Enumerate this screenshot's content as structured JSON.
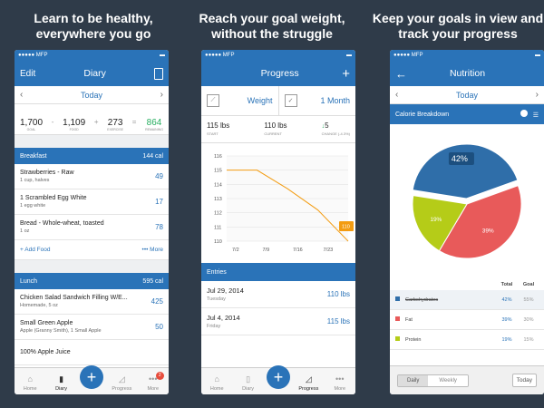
{
  "captions": [
    "Learn to be healthy,\neverywhere you go",
    "Reach your goal weight,\nwithout the struggle",
    "Keep your goals in view and\ntrack your progress"
  ],
  "status": {
    "carrier": "●●●●● MFP",
    "battery": "▬"
  },
  "diary": {
    "nav_left": "Edit",
    "title": "Diary",
    "date": "Today",
    "summary": [
      {
        "num": "1,700",
        "lbl": "GOAL"
      },
      {
        "num": "1,109",
        "lbl": "FOOD"
      },
      {
        "num": "273",
        "lbl": "EXERCISE"
      },
      {
        "num": "864",
        "lbl": "REMAINING"
      }
    ],
    "ops": [
      "-",
      "+",
      "="
    ],
    "breakfast": {
      "title": "Breakfast",
      "cal": "144 cal"
    },
    "breakfast_items": [
      {
        "name": "Strawberries - Raw",
        "serving": "1 cup, halves",
        "cal": "49"
      },
      {
        "name": "1 Scrambled Egg White",
        "serving": "1 egg white",
        "cal": "17"
      },
      {
        "name": "Bread - Whole-wheat, toasted",
        "serving": "1 oz",
        "cal": "78"
      }
    ],
    "add_food": "+ Add Food",
    "more": "••• More",
    "lunch": {
      "title": "Lunch",
      "cal": "595 cal"
    },
    "lunch_items": [
      {
        "name": "Chicken Salad Sandwich Filling W/E...",
        "serving": "Homemade, 5 oz",
        "cal": "425"
      },
      {
        "name": "Small Green Apple",
        "serving": "Apple (Granny Smith), 1 Small Apple",
        "cal": "50"
      },
      {
        "name": "100% Apple Juice",
        "serving": "",
        "cal": ""
      }
    ]
  },
  "progress": {
    "title": "Progress",
    "plus": "+",
    "metric": "Weight",
    "range": "1 Month",
    "stats": [
      {
        "num": "115 lbs",
        "lbl": "START"
      },
      {
        "num": "110 lbs",
        "lbl": "CURRENT"
      },
      {
        "num": "5",
        "lbl": "CHANGE (-4.3%)"
      }
    ],
    "entries_title": "Entries",
    "entries": [
      {
        "date": "Jul 29, 2014",
        "day": "Tuesday",
        "weight": "110 lbs"
      },
      {
        "date": "Jul 4, 2014",
        "day": "Friday",
        "weight": "115 lbs"
      }
    ]
  },
  "chart_data": {
    "type": "line",
    "x": [
      "7/2",
      "7/9",
      "7/16",
      "7/23",
      "7/29"
    ],
    "y_ticks": [
      116,
      115,
      114,
      113,
      112,
      111,
      110
    ],
    "ylim": [
      110,
      116
    ],
    "series": [
      {
        "values": [
          115,
          115,
          113.7,
          112.2,
          110
        ]
      }
    ],
    "point_label": "110",
    "color": "#f39c12"
  },
  "nutrition": {
    "title": "Nutrition",
    "date": "Today",
    "section": "Calorie Breakdown",
    "pie": [
      {
        "name": "Carbohydrates",
        "pct": 42,
        "label": "42%",
        "color": "#2f6ea9"
      },
      {
        "name": "Fat",
        "pct": 39,
        "label": "39%",
        "color": "#e85a5a"
      },
      {
        "name": "Protein",
        "pct": 19,
        "label": "19%",
        "color": "#b5cc18"
      }
    ],
    "col_total": "Total",
    "col_goal": "Goal",
    "rows": [
      {
        "name": "Carbohydrates",
        "total": "42%",
        "goal": "55%",
        "color": "#2f6ea9"
      },
      {
        "name": "Fat",
        "total": "39%",
        "goal": "30%",
        "color": "#e85a5a"
      },
      {
        "name": "Protein",
        "total": "19%",
        "goal": "15%",
        "color": "#b5cc18"
      }
    ],
    "seg": [
      "Daily",
      "Weekly"
    ],
    "today_btn": "Today"
  },
  "tabs": [
    "Home",
    "Diary",
    "Progress",
    "More"
  ],
  "more_badge": "2"
}
